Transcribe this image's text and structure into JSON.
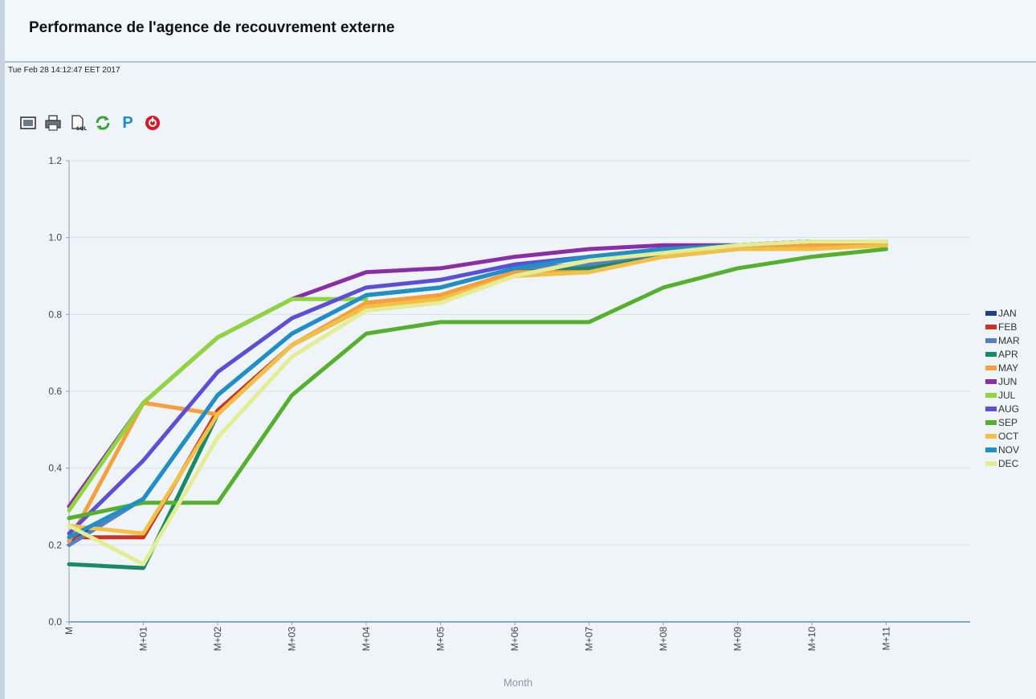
{
  "page": {
    "title": "Performance de l'agence de recouvrement externe",
    "timestamp": "Tue Feb 28 14:12:47 EET 2017"
  },
  "toolbar": {
    "icons": [
      "display-icon",
      "print-icon",
      "sql-icon",
      "refresh-icon",
      "parameters-icon",
      "close-icon"
    ],
    "parameters_glyph": "P"
  },
  "chart_data": {
    "type": "line",
    "xlabel": "Month",
    "ylabel": "",
    "ylim": [
      0,
      1.2
    ],
    "yticks": [
      "0.0",
      "0.2",
      "0.4",
      "0.6",
      "0.8",
      "1.0",
      "1.2"
    ],
    "categories": [
      "M",
      "M+01",
      "M+02",
      "M+03",
      "M+04",
      "M+05",
      "M+06",
      "M+07",
      "M+08",
      "M+09",
      "M+10",
      "M+11"
    ],
    "grid": true,
    "legend_position": "right",
    "series": [
      {
        "name": "JAN",
        "color": "#1f3f8f",
        "values": [
          0.21,
          0.32,
          0.59,
          0.75,
          0.85,
          0.87,
          0.92,
          0.95,
          0.97,
          0.98,
          0.99,
          0.99
        ]
      },
      {
        "name": "FEB",
        "color": "#cc3322",
        "values": [
          0.22,
          0.22,
          0.55,
          0.72,
          0.83,
          0.85,
          0.91,
          0.92,
          0.96,
          0.98,
          0.98,
          0.98
        ]
      },
      {
        "name": "MAR",
        "color": "#5a7fc0",
        "values": [
          0.2,
          0.32,
          0.59,
          0.75,
          0.85,
          0.87,
          0.92,
          0.93,
          0.96,
          0.98,
          0.99,
          0.99
        ]
      },
      {
        "name": "APR",
        "color": "#1a8a66",
        "values": [
          0.15,
          0.14,
          0.54,
          0.72,
          0.82,
          0.84,
          0.91,
          0.92,
          0.95,
          0.97,
          0.98,
          0.98
        ]
      },
      {
        "name": "MAY",
        "color": "#f5a03c",
        "values": [
          0.21,
          0.57,
          0.54,
          0.72,
          0.83,
          0.85,
          0.91,
          0.91,
          0.95,
          0.97,
          0.98,
          0.98
        ]
      },
      {
        "name": "JUN",
        "color": "#8a2ea8",
        "values": [
          0.3,
          0.57,
          0.74,
          0.84,
          0.91,
          0.92,
          0.95,
          0.97,
          0.98,
          0.98,
          0.99,
          0.99
        ]
      },
      {
        "name": "JUL",
        "color": "#8ed63c",
        "values": [
          0.29,
          0.57,
          0.74,
          0.84,
          0.84,
          null,
          null,
          null,
          null,
          null,
          null,
          null
        ]
      },
      {
        "name": "AUG",
        "color": "#5b4fd6",
        "values": [
          0.23,
          0.42,
          0.65,
          0.79,
          0.87,
          0.89,
          0.93,
          0.95,
          0.97,
          0.98,
          0.99,
          0.99
        ]
      },
      {
        "name": "SEP",
        "color": "#55b02e",
        "values": [
          0.27,
          0.31,
          0.31,
          0.59,
          0.75,
          0.78,
          0.78,
          0.78,
          0.87,
          0.92,
          0.95,
          0.97
        ]
      },
      {
        "name": "OCT",
        "color": "#f2c046",
        "values": [
          0.25,
          0.23,
          0.54,
          0.72,
          0.82,
          0.84,
          0.9,
          0.91,
          0.95,
          0.97,
          0.97,
          0.98
        ]
      },
      {
        "name": "NOV",
        "color": "#1f8fc7",
        "values": [
          0.22,
          0.32,
          0.59,
          0.75,
          0.85,
          0.87,
          0.92,
          0.95,
          0.97,
          0.98,
          0.99,
          0.99
        ]
      },
      {
        "name": "DEC",
        "color": "#e4ec94",
        "values": [
          0.25,
          0.15,
          0.48,
          0.69,
          0.81,
          0.83,
          0.9,
          0.94,
          0.96,
          0.98,
          0.99,
          0.99
        ]
      }
    ]
  }
}
